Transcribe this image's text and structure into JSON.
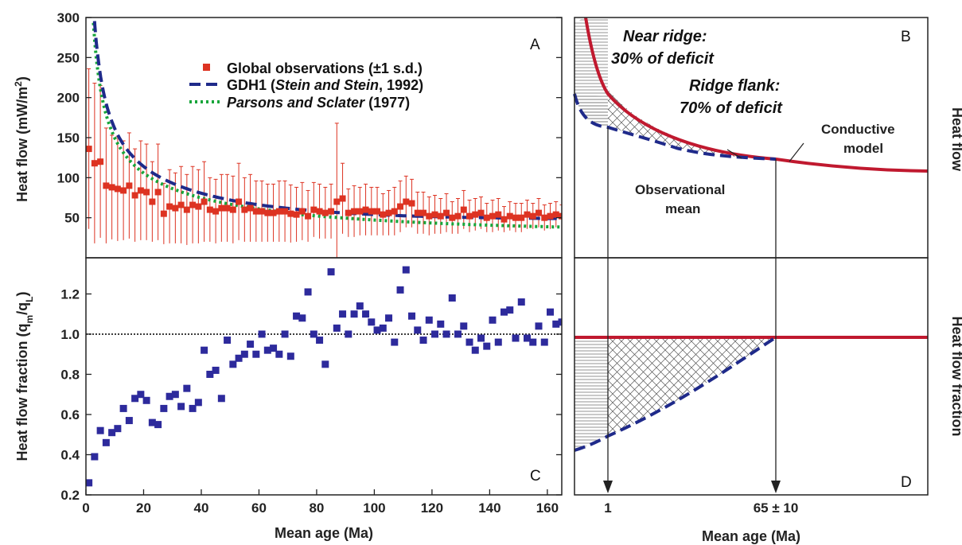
{
  "colors": {
    "observations": "#dd3322",
    "gdh1": "#1f2a8a",
    "parsons": "#17a53a",
    "fraction_points": "#2d2a9c",
    "conductive": "#c0192f",
    "frame": "#222222"
  },
  "chart_data": [
    {
      "panel_label": "A",
      "type": "scatter",
      "xlabel": "",
      "ylabel": "Heat flow (mW/m²)",
      "xlim": [
        0,
        165
      ],
      "ylim": [
        0,
        300
      ],
      "yticks": [
        50,
        100,
        150,
        200,
        250,
        300
      ],
      "legend_placement": "top-center",
      "legend": [
        {
          "text": "Global observations (±1 s.d.)",
          "italic": ""
        },
        {
          "text_pre": "GDH1 (",
          "italic": "Stein and Stein",
          "text_post": ", 1992)"
        },
        {
          "text_pre": "",
          "italic": "Parsons and Sclater",
          "text_post": " (1977)"
        }
      ],
      "series": [
        {
          "name": "Global observations (±1 s.d.)",
          "kind": "points_with_error",
          "x": [
            1,
            3,
            5,
            7,
            9,
            11,
            13,
            15,
            17,
            19,
            21,
            23,
            25,
            27,
            29,
            31,
            33,
            35,
            37,
            39,
            41,
            43,
            45,
            47,
            49,
            51,
            53,
            55,
            57,
            59,
            61,
            63,
            65,
            67,
            69,
            71,
            73,
            75,
            77,
            79,
            81,
            83,
            85,
            87,
            89,
            91,
            93,
            95,
            97,
            99,
            101,
            103,
            105,
            107,
            109,
            111,
            113,
            115,
            117,
            119,
            121,
            123,
            125,
            127,
            129,
            131,
            133,
            135,
            137,
            139,
            141,
            143,
            145,
            147,
            149,
            151,
            153,
            155,
            157,
            159,
            161,
            163,
            165
          ],
          "y": [
            136,
            118,
            120,
            90,
            88,
            86,
            84,
            90,
            78,
            84,
            82,
            70,
            82,
            55,
            64,
            62,
            66,
            60,
            66,
            64,
            70,
            60,
            58,
            62,
            62,
            60,
            70,
            60,
            62,
            58,
            58,
            56,
            56,
            58,
            58,
            55,
            54,
            58,
            52,
            60,
            58,
            56,
            58,
            70,
            74,
            56,
            58,
            58,
            60,
            58,
            58,
            54,
            56,
            58,
            64,
            70,
            68,
            56,
            56,
            52,
            54,
            52,
            56,
            50,
            52,
            60,
            52,
            54,
            56,
            50,
            52,
            54,
            48,
            52,
            50,
            50,
            54,
            52,
            56,
            50,
            52,
            54,
            52
          ],
          "err": [
            100,
            100,
            95,
            72,
            65,
            65,
            62,
            66,
            58,
            62,
            60,
            50,
            60,
            38,
            46,
            44,
            48,
            44,
            48,
            46,
            50,
            40,
            40,
            42,
            42,
            42,
            48,
            40,
            42,
            38,
            38,
            36,
            36,
            38,
            38,
            36,
            34,
            36,
            32,
            34,
            34,
            32,
            34,
            98,
            44,
            30,
            32,
            30,
            32,
            30,
            30,
            26,
            28,
            30,
            32,
            32,
            30,
            26,
            26,
            24,
            24,
            22,
            24,
            20,
            22,
            24,
            20,
            20,
            20,
            18,
            20,
            20,
            16,
            18,
            18,
            18,
            18,
            16,
            18,
            16,
            16,
            16,
            14
          ]
        },
        {
          "name": "GDH1 (Stein and Stein, 1992)",
          "kind": "curve",
          "model": "gdh1"
        },
        {
          "name": "Parsons and Sclater (1977)",
          "kind": "curve",
          "model": "parsons_sclater"
        }
      ]
    },
    {
      "panel_label": "B",
      "type": "diagram",
      "ylabel_right": "Heat flow",
      "annotations": {
        "near_ridge": [
          "Near ridge:",
          "30% of deficit"
        ],
        "ridge_flank": [
          "Ridge flank:",
          "70% of deficit"
        ],
        "conductive": [
          "Conductive",
          "model"
        ],
        "observational": [
          "Observational",
          "mean"
        ]
      }
    },
    {
      "panel_label": "C",
      "type": "scatter",
      "xlabel": "Mean age (Ma)",
      "ylabel": "Heat flow fraction (q_m/q_L)",
      "ylabel_main": "Heat flow fraction (q",
      "ylabel_sub_m": "m",
      "ylabel_mid": "/q",
      "ylabel_sub_L": "L",
      "ylabel_end": ")",
      "xlim": [
        0,
        165
      ],
      "ylim": [
        0.2,
        1.38
      ],
      "xticks": [
        0,
        20,
        40,
        60,
        80,
        100,
        120,
        140,
        160
      ],
      "yticks": [
        0.2,
        0.4,
        0.6,
        0.8,
        1.0,
        1.2
      ],
      "ytick_labels": [
        "0.2",
        "0.4",
        "0.6",
        "0.8",
        "1.0",
        "1.2"
      ],
      "reference_line": 1.0,
      "series": [
        {
          "name": "",
          "x": [
            1,
            3,
            5,
            7,
            9,
            11,
            13,
            15,
            17,
            19,
            21,
            23,
            25,
            27,
            29,
            31,
            33,
            35,
            37,
            39,
            41,
            43,
            45,
            47,
            49,
            51,
            53,
            55,
            57,
            59,
            61,
            63,
            65,
            67,
            69,
            71,
            73,
            75,
            77,
            79,
            81,
            83,
            85,
            87,
            89,
            91,
            93,
            95,
            97,
            99,
            101,
            103,
            105,
            107,
            109,
            111,
            113,
            115,
            117,
            119,
            121,
            123,
            125,
            127,
            129,
            131,
            133,
            135,
            137,
            139,
            141,
            143,
            145,
            147,
            149,
            151,
            153,
            155,
            157,
            159,
            161,
            163,
            165
          ],
          "y": [
            0.26,
            0.39,
            0.52,
            0.46,
            0.51,
            0.53,
            0.63,
            0.57,
            0.68,
            0.7,
            0.67,
            0.56,
            0.55,
            0.63,
            0.69,
            0.7,
            0.64,
            0.73,
            0.63,
            0.66,
            0.92,
            0.8,
            0.82,
            0.68,
            0.97,
            0.85,
            0.88,
            0.9,
            0.95,
            0.9,
            1.0,
            0.92,
            0.93,
            0.9,
            1.0,
            0.89,
            1.09,
            1.08,
            1.21,
            1.0,
            0.97,
            0.85,
            1.31,
            1.03,
            1.1,
            1.0,
            1.1,
            1.14,
            1.1,
            1.06,
            1.02,
            1.03,
            1.08,
            0.96,
            1.22,
            1.32,
            1.09,
            1.02,
            0.97,
            1.07,
            1.0,
            1.05,
            1.0,
            1.18,
            1.0,
            1.04,
            0.96,
            0.92,
            0.98,
            0.94,
            1.07,
            0.96,
            1.11,
            1.12,
            0.98,
            1.16,
            0.98,
            0.96,
            1.04,
            0.96,
            1.11,
            1.05,
            1.06
          ]
        }
      ]
    },
    {
      "panel_label": "D",
      "type": "diagram",
      "xlabel": "Mean age (Ma)",
      "ylabel_right": "Heat flow fraction",
      "xtick_labels": [
        "1",
        "65 ± 10"
      ]
    }
  ]
}
